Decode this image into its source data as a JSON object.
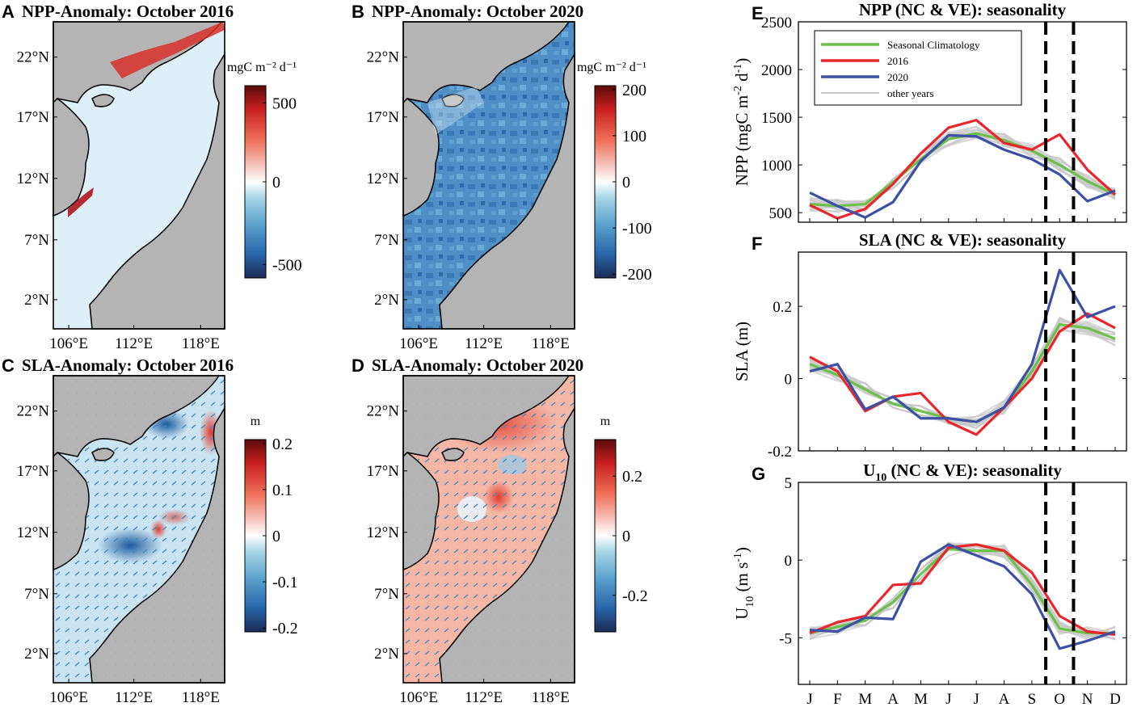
{
  "colors": {
    "land": "#b4b4b4",
    "green": "#6cc04a",
    "red": "#e8262b",
    "blue": "#3c50a6",
    "gray": "#c8c8c8",
    "quiver": "#3a86c8"
  },
  "maps": [
    {
      "letter": "A",
      "title": "NPP-Anomaly: October 2016",
      "cb_unit": "mgC m⁻² d⁻¹",
      "cb_ticks": [
        "500",
        "0",
        "-500"
      ],
      "yticks": [
        "22°N",
        "17°N",
        "12°N",
        "7°N",
        "2°N"
      ],
      "xticks": [
        "106°E",
        "112°E",
        "118°E"
      ]
    },
    {
      "letter": "B",
      "title": "NPP-Anomaly: October 2020",
      "cb_unit": "mgC m⁻² d⁻¹",
      "cb_ticks": [
        "200",
        "100",
        "0",
        "-100",
        "-200"
      ],
      "yticks": [
        "22°N",
        "17°N",
        "12°N",
        "7°N",
        "2°N"
      ],
      "xticks": [
        "106°E",
        "112°E",
        "118°E"
      ]
    },
    {
      "letter": "C",
      "title": "SLA-Anomaly: October 2016",
      "cb_unit": "m",
      "cb_ticks": [
        "0.2",
        "0.1",
        "0",
        "-0.1",
        "-0.2"
      ],
      "yticks": [
        "22°N",
        "17°N",
        "12°N",
        "7°N",
        "2°N"
      ],
      "xticks": [
        "106°E",
        "112°E",
        "118°E"
      ]
    },
    {
      "letter": "D",
      "title": "SLA-Anomaly: October 2020",
      "cb_unit": "m",
      "cb_ticks": [
        "0.2",
        "0",
        "-0.2"
      ],
      "yticks": [
        "22°N",
        "17°N",
        "12°N",
        "7°N",
        "2°N"
      ],
      "xticks": [
        "106°E",
        "112°E",
        "118°E"
      ]
    }
  ],
  "chart_data": [
    {
      "type": "line",
      "panel": "E",
      "title": "NPP (NC & VE): seasonality",
      "ylabel": "NPP (mgC m⁻² d⁻¹)",
      "ylabel_main": "NPP (mgC m",
      "ylabel_sup1": "-2",
      "ylabel_mid": " d",
      "ylabel_sup2": "-1",
      "ylabel_end": ")",
      "ylim": [
        400,
        2500
      ],
      "yticks": [
        500,
        1000,
        1500,
        2000,
        2500
      ],
      "ytick_labels": [
        "500",
        "1000",
        "1500",
        "2000",
        "2500"
      ],
      "categories": [
        "J",
        "F",
        "M",
        "A",
        "M",
        "J",
        "J",
        "A",
        "S",
        "O",
        "N",
        "D"
      ],
      "vlines": [
        9.5,
        10.5
      ],
      "legend": [
        "Seasonal Climatology",
        "2016",
        "2020",
        "other years"
      ],
      "series": [
        {
          "name": "Seasonal Climatology",
          "color": "green",
          "values": [
            590,
            570,
            590,
            820,
            1060,
            1270,
            1330,
            1260,
            1150,
            1000,
            830,
            690
          ]
        },
        {
          "name": "2016",
          "color": "red",
          "values": [
            580,
            440,
            540,
            800,
            1120,
            1390,
            1470,
            1230,
            1160,
            1320,
            950,
            690
          ]
        },
        {
          "name": "2020",
          "color": "blue",
          "values": [
            710,
            570,
            450,
            610,
            1040,
            1310,
            1300,
            1160,
            1060,
            900,
            620,
            730
          ]
        }
      ]
    },
    {
      "type": "line",
      "panel": "F",
      "title": "SLA (NC & VE): seasonality",
      "ylabel": "SLA (m)",
      "ylim": [
        -0.2,
        0.35
      ],
      "yticks": [
        -0.2,
        0,
        0.2
      ],
      "ytick_labels": [
        "-0.2",
        "0",
        "0.2"
      ],
      "categories": [
        "J",
        "F",
        "M",
        "A",
        "M",
        "J",
        "J",
        "A",
        "S",
        "O",
        "N",
        "D"
      ],
      "vlines": [
        9.5,
        10.5
      ],
      "series": [
        {
          "name": "Seasonal Climatology",
          "color": "green",
          "values": [
            0.04,
            0.01,
            -0.03,
            -0.07,
            -0.09,
            -0.11,
            -0.12,
            -0.08,
            0.02,
            0.15,
            0.14,
            0.11
          ]
        },
        {
          "name": "2016",
          "color": "red",
          "values": [
            0.06,
            0.02,
            -0.09,
            -0.05,
            -0.04,
            -0.12,
            -0.155,
            -0.08,
            0.0,
            0.13,
            0.18,
            0.14
          ]
        },
        {
          "name": "2020",
          "color": "blue",
          "values": [
            0.02,
            0.04,
            -0.085,
            -0.05,
            -0.11,
            -0.11,
            -0.12,
            -0.08,
            0.04,
            0.3,
            0.17,
            0.2
          ]
        }
      ]
    },
    {
      "type": "line",
      "panel": "G",
      "title": "U10 (NC & VE): seasonality",
      "title_main": "U",
      "title_sub": "10",
      "title_rest": " (NC & VE): seasonality",
      "ylabel": "U10 (m s⁻¹)",
      "ylabel_main": "U",
      "ylabel_sub": "10",
      "ylabel_rest": " (m s",
      "ylabel_sup": "-1",
      "ylabel_end": ")",
      "ylim": [
        -8,
        5
      ],
      "yticks": [
        -5,
        0,
        5
      ],
      "ytick_labels": [
        "-5",
        "0",
        "5"
      ],
      "categories": [
        "J",
        "F",
        "M",
        "A",
        "M",
        "J",
        "J",
        "A",
        "S",
        "O",
        "N",
        "D"
      ],
      "vlines": [
        9.5,
        10.5
      ],
      "series": [
        {
          "name": "Seasonal Climatology",
          "color": "green",
          "values": [
            -4.7,
            -4.3,
            -3.9,
            -2.7,
            -0.9,
            0.7,
            0.6,
            0.6,
            -1.6,
            -4.4,
            -4.7,
            -4.7
          ]
        },
        {
          "name": "2016",
          "color": "red",
          "values": [
            -4.7,
            -4.0,
            -3.6,
            -1.6,
            -1.5,
            0.8,
            1.0,
            0.6,
            -0.8,
            -3.6,
            -4.6,
            -4.8
          ]
        },
        {
          "name": "2020",
          "color": "blue",
          "values": [
            -4.5,
            -4.6,
            -3.7,
            -3.8,
            -0.1,
            1.0,
            0.3,
            -0.4,
            -2.2,
            -5.7,
            -5.2,
            -4.6
          ]
        }
      ]
    }
  ]
}
